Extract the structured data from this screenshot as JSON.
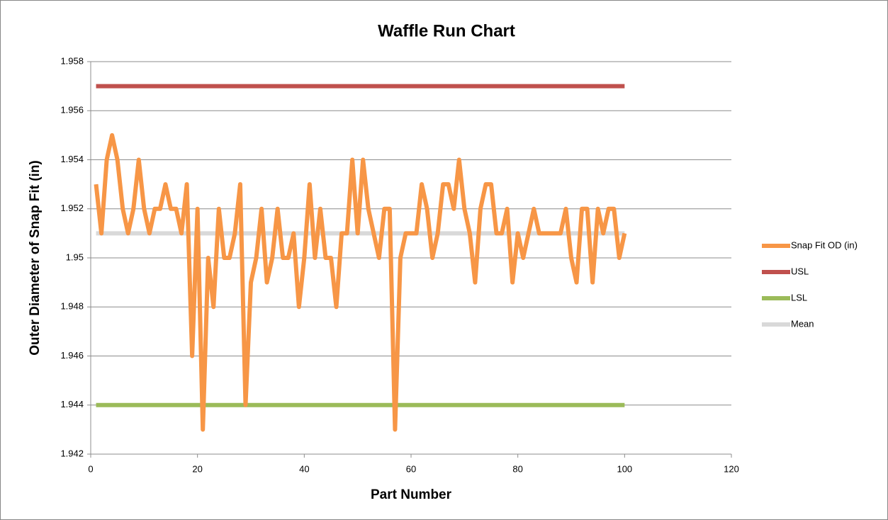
{
  "chart_data": {
    "type": "line",
    "title": "Waffle Run Chart",
    "x_label": "Part Number",
    "y_label": "Outer Diameter of Snap Fit (in)",
    "xlim": [
      0,
      120
    ],
    "xticks": [
      0,
      20,
      40,
      60,
      80,
      100,
      120
    ],
    "ylim": [
      1.942,
      1.958
    ],
    "yticks": [
      1.942,
      1.944,
      1.946,
      1.948,
      1.95,
      1.952,
      1.954,
      1.956,
      1.958
    ],
    "grid": true,
    "legend": "right",
    "series": [
      {
        "name": "Snap Fit OD (in)",
        "color": "#f79646",
        "x": [
          1,
          2,
          3,
          4,
          5,
          6,
          7,
          8,
          9,
          10,
          11,
          12,
          13,
          14,
          15,
          16,
          17,
          18,
          19,
          20,
          21,
          22,
          23,
          24,
          25,
          26,
          27,
          28,
          29,
          30,
          31,
          32,
          33,
          34,
          35,
          36,
          37,
          38,
          39,
          40,
          41,
          42,
          43,
          44,
          45,
          46,
          47,
          48,
          49,
          50,
          51,
          52,
          53,
          54,
          55,
          56,
          57,
          58,
          59,
          60,
          61,
          62,
          63,
          64,
          65,
          66,
          67,
          68,
          69,
          70,
          71,
          72,
          73,
          74,
          75,
          76,
          77,
          78,
          79,
          80,
          81,
          82,
          83,
          84,
          85,
          86,
          87,
          88,
          89,
          90,
          91,
          92,
          93,
          94,
          95,
          96,
          97,
          98,
          99,
          100
        ],
        "values": [
          1.953,
          1.951,
          1.954,
          1.955,
          1.954,
          1.952,
          1.951,
          1.952,
          1.954,
          1.952,
          1.951,
          1.952,
          1.952,
          1.953,
          1.952,
          1.952,
          1.951,
          1.953,
          1.946,
          1.952,
          1.943,
          1.95,
          1.948,
          1.952,
          1.95,
          1.95,
          1.951,
          1.953,
          1.944,
          1.949,
          1.95,
          1.952,
          1.949,
          1.95,
          1.952,
          1.95,
          1.95,
          1.951,
          1.948,
          1.95,
          1.953,
          1.95,
          1.952,
          1.95,
          1.95,
          1.948,
          1.951,
          1.951,
          1.954,
          1.951,
          1.954,
          1.952,
          1.951,
          1.95,
          1.952,
          1.952,
          1.943,
          1.95,
          1.951,
          1.951,
          1.951,
          1.953,
          1.952,
          1.95,
          1.951,
          1.953,
          1.953,
          1.952,
          1.954,
          1.952,
          1.951,
          1.949,
          1.952,
          1.953,
          1.953,
          1.951,
          1.951,
          1.952,
          1.949,
          1.951,
          1.95,
          1.951,
          1.952,
          1.951,
          1.951,
          1.951,
          1.951,
          1.951,
          1.952,
          1.95,
          1.949,
          1.952,
          1.952,
          1.949,
          1.952,
          1.951,
          1.952,
          1.952,
          1.95,
          1.951
        ]
      },
      {
        "name": "USL",
        "color": "#c0504d",
        "x": [
          1,
          100
        ],
        "values": [
          1.957,
          1.957
        ]
      },
      {
        "name": "LSL",
        "color": "#9bbb59",
        "x": [
          1,
          100
        ],
        "values": [
          1.944,
          1.944
        ]
      },
      {
        "name": "Mean",
        "color": "#d9d9d9",
        "x": [
          1,
          100
        ],
        "values": [
          1.951,
          1.951
        ]
      }
    ]
  }
}
